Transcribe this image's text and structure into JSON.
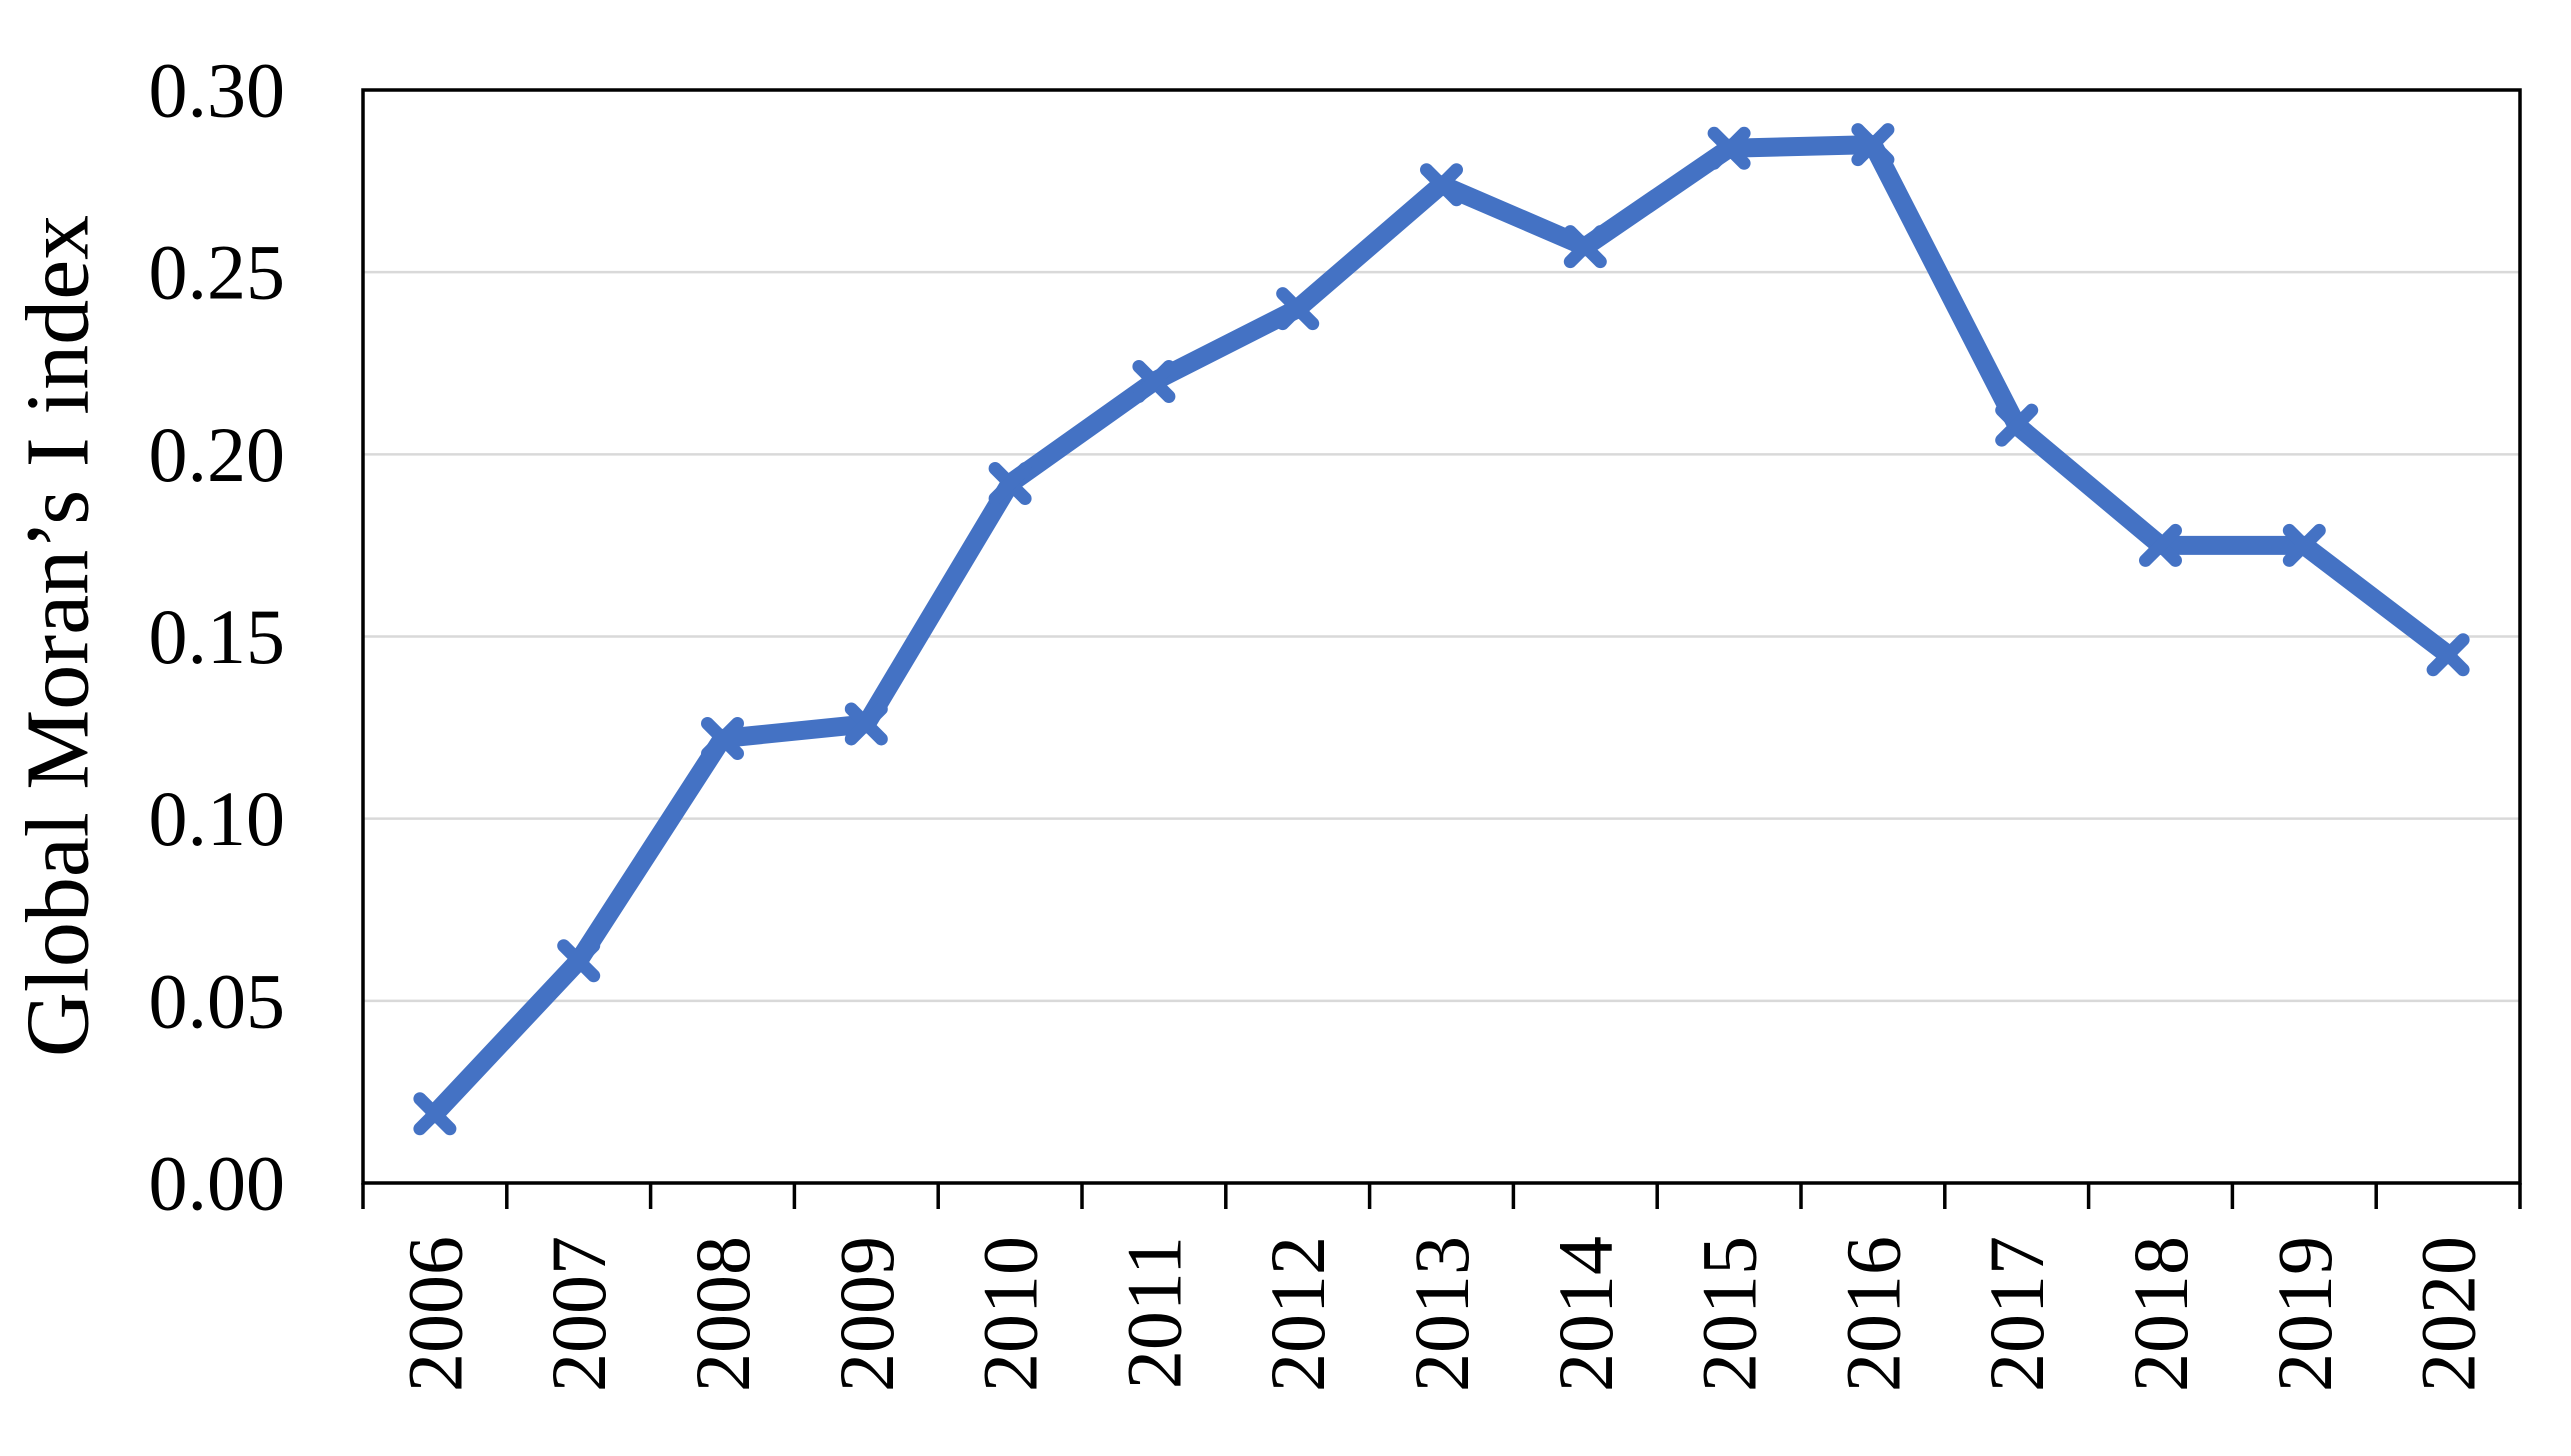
{
  "chart_data": {
    "type": "line",
    "title": "",
    "xlabel": "",
    "ylabel": "Global Moran’s I index",
    "categories": [
      "2006",
      "2007",
      "2008",
      "2009",
      "2010",
      "2011",
      "2012",
      "2013",
      "2014",
      "2015",
      "2016",
      "2017",
      "2018",
      "2019",
      "2020"
    ],
    "series": [
      {
        "name": "Global Moran’s I index",
        "values": [
          0.019,
          0.061,
          0.122,
          0.126,
          0.192,
          0.22,
          0.24,
          0.274,
          0.257,
          0.284,
          0.285,
          0.208,
          0.175,
          0.175,
          0.145
        ]
      }
    ],
    "ylim": [
      0,
      0.3
    ],
    "ytick_step": 0.05,
    "ytick_labels": [
      "0.00",
      "0.05",
      "0.10",
      "0.15",
      "0.20",
      "0.25",
      "0.30"
    ],
    "xtick_rotation_degrees": 90,
    "grid": "horizontal-only",
    "legend": "none",
    "marker_style": "x",
    "line_color": "#4472C4",
    "gridline_color": "#D9D9D9",
    "axis_color": "#000000",
    "background_color": "#FFFFFF"
  }
}
